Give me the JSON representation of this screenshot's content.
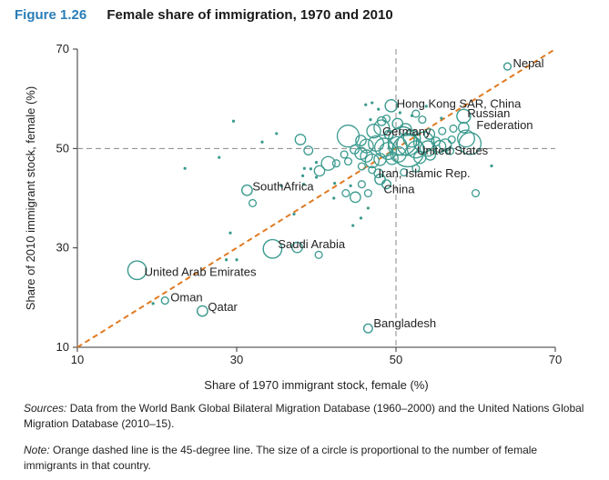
{
  "figure": {
    "number": "Figure 1.26",
    "title": "Female share of immigration, 1970 and 2010"
  },
  "chart_data": {
    "type": "scatter",
    "xlabel": "Share of 1970 immigrant stock, female (%)",
    "ylabel": "Share of 2010 immigrant stock, female (%)",
    "xlim": [
      10,
      70
    ],
    "ylim": [
      10,
      70
    ],
    "xticks": [
      "10",
      "30",
      "50",
      "70"
    ],
    "yticks": [
      "10",
      "30",
      "50",
      "70"
    ],
    "reference_lines": {
      "x": 50,
      "y": 50,
      "style": "dashed",
      "color": "#888888"
    },
    "diagonal": {
      "from": [
        10,
        10
      ],
      "to": [
        70,
        70
      ],
      "style": "dashed",
      "color": "#e07b22"
    },
    "marker_color": "#3a9a8e",
    "labeled_points": [
      {
        "label": "Nepal",
        "x": 64.0,
        "y": 66.5,
        "size": 3
      },
      {
        "label": "Hong Kong SAR, China",
        "x": 49.4,
        "y": 58.6,
        "size": 6
      },
      {
        "label": "Russian",
        "x": 58.5,
        "y": 56.5,
        "size": 7
      },
      {
        "label": "Federation",
        "x": 58.5,
        "y": 56.5,
        "size": 0
      },
      {
        "label": "Germany",
        "x": 50.8,
        "y": 51.5,
        "size": 16
      },
      {
        "label": "United States",
        "x": 51.5,
        "y": 49.5,
        "size": 18
      },
      {
        "label": "Iran, Islamic Rep.",
        "x": 48.0,
        "y": 43.8,
        "size": 5
      },
      {
        "label": "China",
        "x": 48.8,
        "y": 42.8,
        "size": 4
      },
      {
        "label": "SouthAfrica",
        "x": 31.3,
        "y": 41.6,
        "size": 5
      },
      {
        "label": "Saudi Arabia",
        "x": 34.5,
        "y": 29.8,
        "size": 10
      },
      {
        "label": "United Arab Emirates",
        "x": 17.5,
        "y": 25.5,
        "size": 10
      },
      {
        "label": "Oman",
        "x": 21.0,
        "y": 19.4,
        "size": 3
      },
      {
        "label": "Qatar",
        "x": 25.7,
        "y": 17.3,
        "size": 5
      },
      {
        "label": "Bangladesh",
        "x": 46.5,
        "y": 13.8,
        "size": 4
      }
    ],
    "other_points": [
      [
        46.2,
        58.8,
        2
      ],
      [
        47.0,
        59.2,
        2
      ],
      [
        47.8,
        57.9,
        2
      ],
      [
        48.2,
        55.5,
        4
      ],
      [
        47.2,
        53.5,
        7
      ],
      [
        48.2,
        54.2,
        8
      ],
      [
        45.6,
        51.6,
        5
      ],
      [
        49.1,
        52.8,
        4
      ],
      [
        50.2,
        55.0,
        5
      ],
      [
        51.2,
        53.8,
        6
      ],
      [
        52.0,
        52.0,
        9
      ],
      [
        53.5,
        51.3,
        11
      ],
      [
        54.2,
        52.9,
        5
      ],
      [
        55.0,
        51.4,
        4
      ],
      [
        53.3,
        55.8,
        3
      ],
      [
        55.8,
        53.5,
        3
      ],
      [
        57.2,
        54.0,
        3
      ],
      [
        58.5,
        54.2,
        5
      ],
      [
        58.8,
        52.0,
        9
      ],
      [
        59.3,
        51.0,
        12
      ],
      [
        44.0,
        52.5,
        12
      ],
      [
        46.3,
        50.5,
        7
      ],
      [
        47.5,
        51.0,
        8
      ],
      [
        48.5,
        50.2,
        10
      ],
      [
        49.0,
        49.5,
        9
      ],
      [
        50.2,
        50.5,
        10
      ],
      [
        51.5,
        50.8,
        12
      ],
      [
        52.5,
        49.8,
        9
      ],
      [
        54.0,
        50.0,
        8
      ],
      [
        55.5,
        50.4,
        6
      ],
      [
        56.2,
        50.7,
        6
      ],
      [
        57.0,
        51.8,
        3
      ],
      [
        45.6,
        49.0,
        6
      ],
      [
        46.3,
        48.5,
        6
      ],
      [
        47.0,
        47.5,
        7
      ],
      [
        48.0,
        47.8,
        6
      ],
      [
        49.5,
        48.0,
        6
      ],
      [
        50.3,
        48.8,
        8
      ],
      [
        53.0,
        48.2,
        6
      ],
      [
        54.3,
        48.7,
        5
      ],
      [
        44.8,
        49.8,
        4
      ],
      [
        43.5,
        48.8,
        3
      ],
      [
        42.5,
        47.0,
        3
      ],
      [
        44.0,
        47.4,
        3
      ],
      [
        45.7,
        46.4,
        3
      ],
      [
        47.0,
        45.7,
        3
      ],
      [
        47.8,
        45.0,
        4
      ],
      [
        51.0,
        45.2,
        3
      ],
      [
        52.5,
        46.0,
        3
      ],
      [
        38.0,
        51.8,
        5
      ],
      [
        39.0,
        49.6,
        4
      ],
      [
        41.5,
        47.0,
        7
      ],
      [
        40.4,
        45.5,
        5
      ],
      [
        38.5,
        46.0,
        2
      ],
      [
        39.3,
        45.9,
        2
      ],
      [
        40.0,
        47.2,
        2
      ],
      [
        38.3,
        44.5,
        2
      ],
      [
        40.0,
        44.2,
        2
      ],
      [
        38.4,
        42.8,
        2
      ],
      [
        35.6,
        42.5,
        2
      ],
      [
        42.3,
        43.0,
        2
      ],
      [
        43.7,
        41.0,
        3
      ],
      [
        42.2,
        40.0,
        2
      ],
      [
        44.9,
        40.2,
        5
      ],
      [
        46.5,
        41.0,
        3
      ],
      [
        45.7,
        42.8,
        3
      ],
      [
        46.5,
        38.0,
        2
      ],
      [
        44.3,
        42.5,
        2
      ],
      [
        45.6,
        36.0,
        2
      ],
      [
        44.6,
        34.5,
        2
      ],
      [
        32.0,
        39.0,
        3
      ],
      [
        37.2,
        36.8,
        2
      ],
      [
        40.3,
        28.6,
        3
      ],
      [
        37.6,
        30.1,
        5
      ],
      [
        28.7,
        27.6,
        2
      ],
      [
        30.0,
        27.6,
        2
      ],
      [
        60.0,
        41.0,
        3
      ],
      [
        62.0,
        46.5,
        2
      ],
      [
        27.8,
        48.2,
        2
      ],
      [
        29.6,
        55.5,
        2
      ],
      [
        23.5,
        46.0,
        2
      ],
      [
        29.2,
        33.0,
        2
      ],
      [
        19.5,
        18.8,
        2
      ],
      [
        33.2,
        51.3,
        2
      ],
      [
        35.0,
        53.0,
        2
      ],
      [
        56.8,
        49.5,
        3
      ],
      [
        52.5,
        57.0,
        3
      ],
      [
        50.5,
        57.2,
        2
      ],
      [
        53.8,
        58.5,
        2
      ],
      [
        48.8,
        56.0,
        3
      ],
      [
        46.8,
        55.8,
        2
      ],
      [
        55.7,
        56.1,
        2
      ],
      [
        52.0,
        56.6,
        2
      ]
    ]
  },
  "notes": {
    "sources_label": "Sources:",
    "sources_text": " Data from the World Bank Global Bilateral Migration Database (1960–2000) and the United Nations Global Migration Database (2010–15).",
    "note_label": "Note:",
    "note_text": " Orange dashed line is the 45-degree line. The size of a circle is proportional to the number of female immigrants in that country."
  }
}
